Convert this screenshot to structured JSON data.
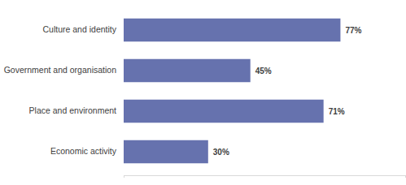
{
  "chart_data": {
    "type": "bar",
    "orientation": "horizontal",
    "categories": [
      "Culture and identity",
      "Government and organisation",
      "Place and environment",
      "Economic activity"
    ],
    "values": [
      77,
      45,
      71,
      30
    ],
    "value_labels": [
      "77%",
      "45%",
      "71%",
      "30%"
    ],
    "color": "#6672ae",
    "xlim": [
      0,
      100
    ],
    "xticks": [
      0,
      100
    ],
    "data_labels": true,
    "tick_labels": "y",
    "grid": false
  }
}
